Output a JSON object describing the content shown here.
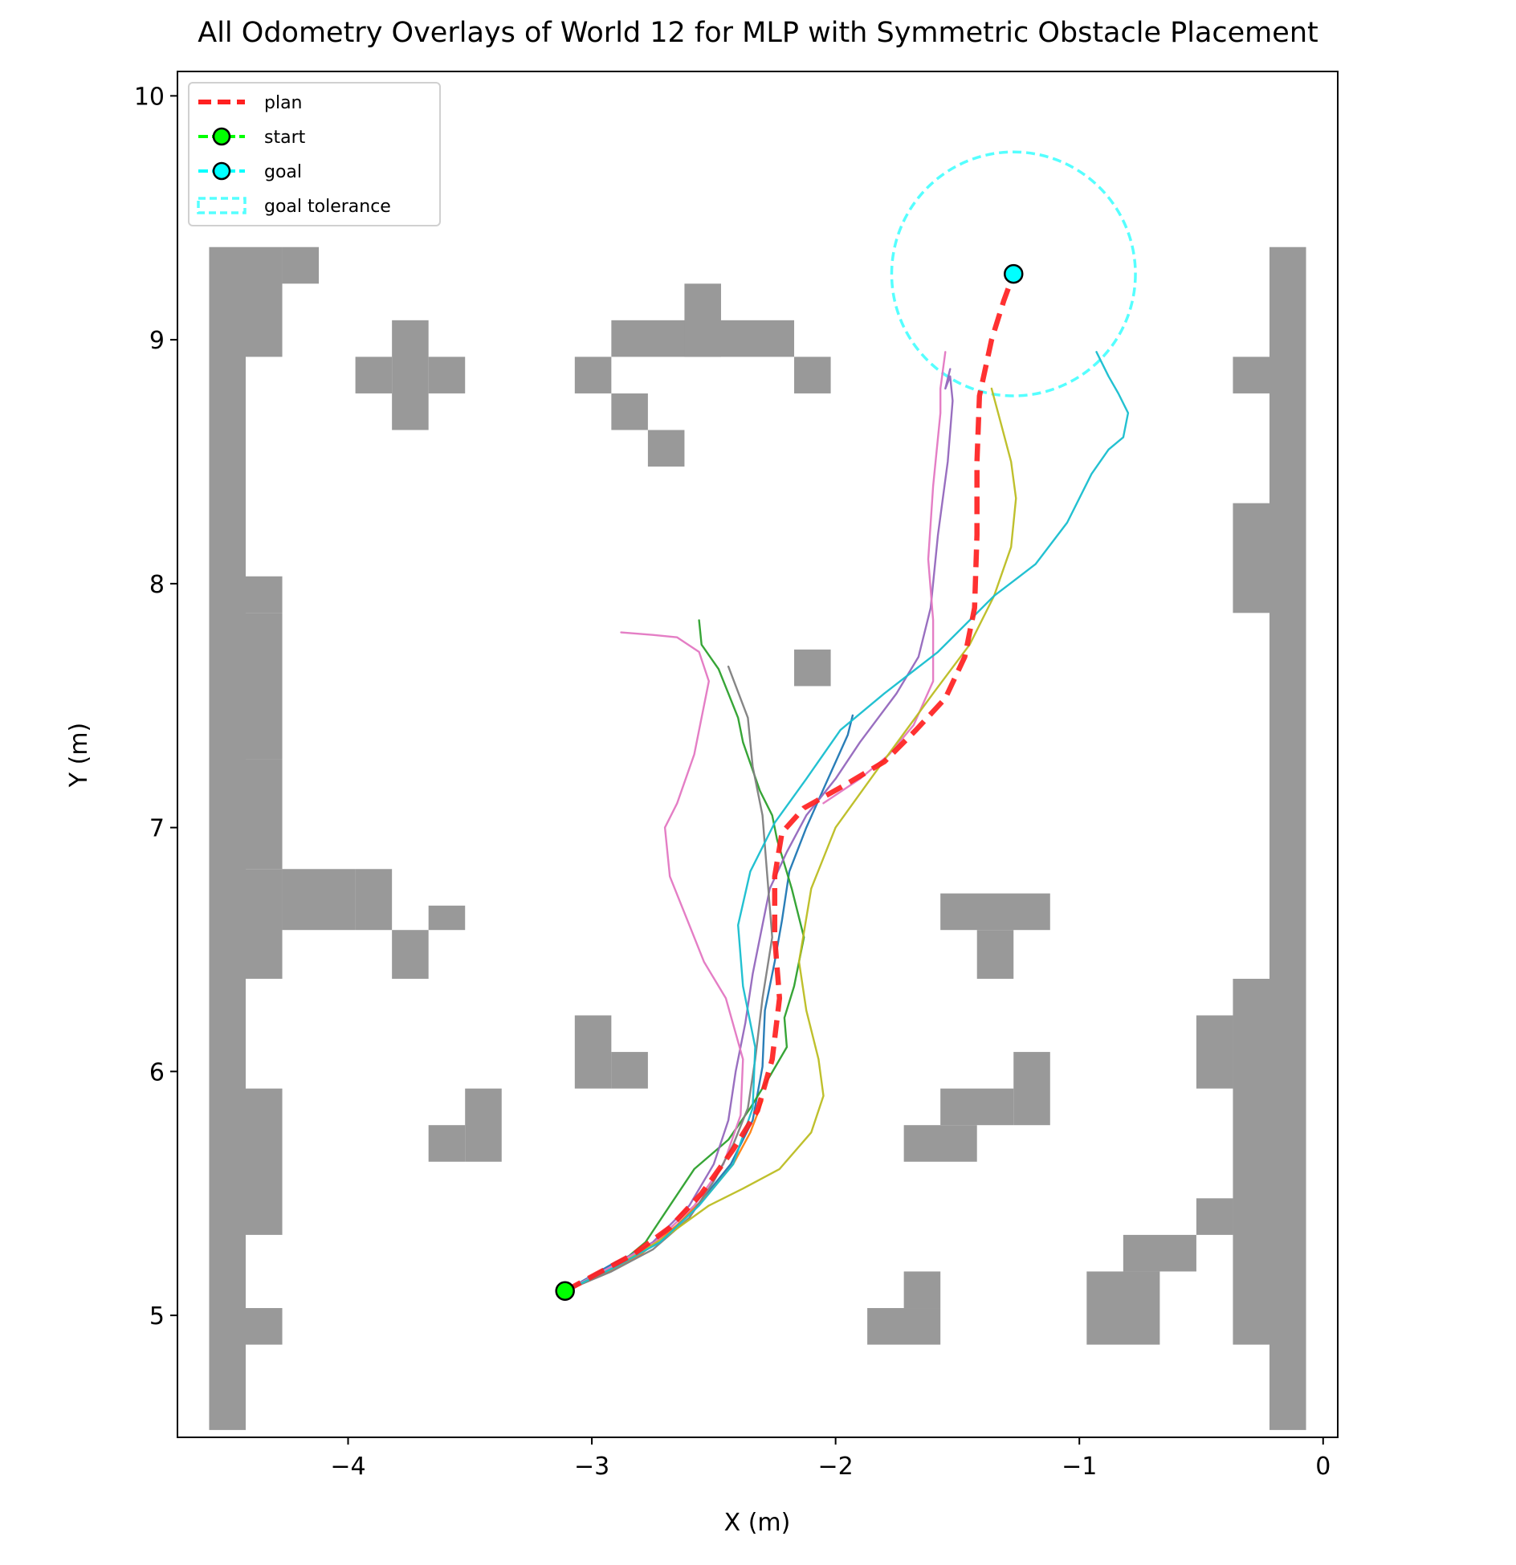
{
  "chart_data": {
    "type": "line",
    "title": "All Odometry Overlays of World 12 for MLP with Symmetric Obstacle Placement",
    "xlabel": "X (m)",
    "ylabel": "Y (m)",
    "xlim": [
      -4.7,
      0.06
    ],
    "ylim": [
      4.5,
      10.1
    ],
    "xticks": [
      -4,
      -3,
      -2,
      -1,
      0
    ],
    "xtick_labels": [
      "−4",
      "−3",
      "−2",
      "−1",
      "0"
    ],
    "yticks": [
      5,
      6,
      7,
      8,
      9,
      10
    ],
    "ytick_labels": [
      "5",
      "6",
      "7",
      "8",
      "9",
      "10"
    ],
    "grid": false,
    "legend": {
      "position": "top-left",
      "entries": [
        {
          "label": "plan",
          "color": "#ff2020",
          "style": "dashed-line"
        },
        {
          "label": "start",
          "color": "#00ff00",
          "style": "line-marker"
        },
        {
          "label": "goal",
          "color": "#00ffff",
          "style": "line-marker"
        },
        {
          "label": "goal tolerance",
          "color": "#55ffff",
          "style": "dashed-patch"
        }
      ]
    },
    "obstacle_color": "#999999",
    "obstacles": [
      [
        -4.57,
        4.53,
        0.15,
        4.85
      ],
      [
        -4.42,
        8.93,
        0.15,
        0.45
      ],
      [
        -4.42,
        7.88,
        0.15,
        0.15
      ],
      [
        -4.42,
        7.28,
        0.15,
        0.6
      ],
      [
        -4.42,
        6.83,
        0.15,
        0.45
      ],
      [
        -4.42,
        6.38,
        0.15,
        0.45
      ],
      [
        -4.42,
        5.33,
        0.15,
        0.6
      ],
      [
        -4.42,
        4.88,
        0.15,
        0.15
      ],
      [
        -4.27,
        9.23,
        0.15,
        0.15
      ],
      [
        -4.27,
        6.58,
        0.3,
        0.25
      ],
      [
        -3.97,
        6.58,
        0.15,
        0.25
      ],
      [
        -3.97,
        8.78,
        0.15,
        0.15
      ],
      [
        -3.82,
        8.63,
        0.15,
        0.45
      ],
      [
        -3.67,
        8.78,
        0.15,
        0.15
      ],
      [
        -3.82,
        6.38,
        0.15,
        0.2
      ],
      [
        -3.67,
        6.58,
        0.15,
        0.1
      ],
      [
        -3.67,
        5.63,
        0.15,
        0.15
      ],
      [
        -3.52,
        5.63,
        0.15,
        0.3
      ],
      [
        -3.07,
        5.93,
        0.15,
        0.3
      ],
      [
        -2.92,
        5.93,
        0.15,
        0.15
      ],
      [
        -3.07,
        8.78,
        0.15,
        0.15
      ],
      [
        -2.92,
        8.93,
        0.45,
        0.15
      ],
      [
        -2.62,
        8.93,
        0.15,
        0.3
      ],
      [
        -2.92,
        8.63,
        0.15,
        0.15
      ],
      [
        -2.77,
        8.48,
        0.15,
        0.15
      ],
      [
        -2.47,
        8.93,
        0.3,
        0.15
      ],
      [
        -2.17,
        8.78,
        0.15,
        0.15
      ],
      [
        -2.17,
        7.58,
        0.15,
        0.15
      ],
      [
        -1.57,
        6.58,
        0.45,
        0.15
      ],
      [
        -1.42,
        6.38,
        0.15,
        0.2
      ],
      [
        -1.72,
        5.63,
        0.3,
        0.15
      ],
      [
        -1.57,
        5.78,
        0.3,
        0.15
      ],
      [
        -1.27,
        5.78,
        0.15,
        0.3
      ],
      [
        -1.87,
        4.88,
        0.3,
        0.15
      ],
      [
        -1.72,
        5.03,
        0.15,
        0.15
      ],
      [
        -0.97,
        4.88,
        0.3,
        0.3
      ],
      [
        -0.82,
        5.18,
        0.3,
        0.15
      ],
      [
        -0.52,
        5.33,
        0.15,
        0.15
      ],
      [
        -0.52,
        5.93,
        0.15,
        0.3
      ],
      [
        -0.37,
        4.88,
        0.15,
        1.5
      ],
      [
        -0.37,
        6.68,
        0.0,
        0.0
      ],
      [
        -0.37,
        7.88,
        0.15,
        0.45
      ],
      [
        -0.37,
        8.78,
        0.15,
        0.15
      ],
      [
        -0.22,
        4.53,
        0.15,
        4.85
      ]
    ],
    "start": {
      "x": -3.11,
      "y": 5.1,
      "color": "#00ff00"
    },
    "goal": {
      "x": -1.27,
      "y": 9.27,
      "color": "#00ffff"
    },
    "goal_tolerance": {
      "radius": 0.5,
      "color": "#55ffff"
    },
    "plan": {
      "name": "plan",
      "color": "#ff2020",
      "x": [
        -3.11,
        -2.98,
        -2.83,
        -2.68,
        -2.55,
        -2.42,
        -2.32,
        -2.26,
        -2.23,
        -2.25,
        -2.25,
        -2.22,
        -2.13,
        -1.97,
        -1.8,
        -1.67,
        -1.55,
        -1.47,
        -1.43,
        -1.42,
        -1.42,
        -1.41,
        -1.36,
        -1.31,
        -1.27
      ],
      "y": [
        5.1,
        5.17,
        5.25,
        5.36,
        5.5,
        5.68,
        5.84,
        6.05,
        6.3,
        6.55,
        6.8,
        6.98,
        7.08,
        7.17,
        7.27,
        7.4,
        7.53,
        7.7,
        7.9,
        8.2,
        8.5,
        8.77,
        9.0,
        9.16,
        9.27
      ]
    },
    "series": [
      {
        "color": "#1f77b4",
        "x": [
          -3.11,
          -2.9,
          -2.72,
          -2.56,
          -2.43,
          -2.34,
          -2.3,
          -2.29,
          -2.25,
          -2.22,
          -2.19,
          -2.12,
          -2.04,
          -1.95,
          -1.93
        ],
        "y": [
          5.1,
          5.22,
          5.3,
          5.46,
          5.62,
          5.8,
          6.02,
          6.25,
          6.45,
          6.62,
          6.82,
          7.0,
          7.18,
          7.38,
          7.46
        ]
      },
      {
        "color": "#2ca02c",
        "x": [
          -3.11,
          -2.9,
          -2.78,
          -2.68,
          -2.58,
          -2.44,
          -2.35,
          -2.27,
          -2.2,
          -2.21,
          -2.17,
          -2.13,
          -2.18,
          -2.24,
          -2.26,
          -2.31,
          -2.38,
          -2.4,
          -2.44,
          -2.48,
          -2.55,
          -2.56
        ],
        "y": [
          5.1,
          5.2,
          5.3,
          5.45,
          5.6,
          5.72,
          5.85,
          5.98,
          6.1,
          6.22,
          6.35,
          6.55,
          6.75,
          6.95,
          7.05,
          7.15,
          7.35,
          7.45,
          7.55,
          7.65,
          7.75,
          7.85
        ]
      },
      {
        "color": "#ff7f0e",
        "x": [
          -3.11,
          -2.95,
          -2.8,
          -2.65,
          -2.52,
          -2.42,
          -2.35,
          -2.3
        ],
        "y": [
          5.1,
          5.17,
          5.25,
          5.37,
          5.5,
          5.62,
          5.75,
          5.88
        ]
      },
      {
        "color": "#9467bd",
        "x": [
          -3.11,
          -2.92,
          -2.75,
          -2.6,
          -2.5,
          -2.44,
          -2.41,
          -2.37,
          -2.34,
          -2.31,
          -2.27,
          -2.2,
          -2.12,
          -2.0,
          -1.9,
          -1.75,
          -1.66,
          -1.61,
          -1.58,
          -1.54,
          -1.52,
          -1.53,
          -1.55,
          -1.53
        ],
        "y": [
          5.1,
          5.2,
          5.3,
          5.45,
          5.62,
          5.8,
          6.0,
          6.2,
          6.4,
          6.55,
          6.75,
          6.9,
          7.05,
          7.2,
          7.35,
          7.55,
          7.7,
          7.9,
          8.2,
          8.5,
          8.75,
          8.85,
          8.8,
          8.88
        ]
      },
      {
        "color": "#e377c2",
        "x": [
          -3.11,
          -2.92,
          -2.74,
          -2.58,
          -2.46,
          -2.39,
          -2.38,
          -2.45,
          -2.54,
          -2.6,
          -2.68,
          -2.7,
          -2.65,
          -2.58,
          -2.55,
          -2.52,
          -2.56,
          -2.65,
          -2.75,
          -2.88
        ],
        "y": [
          5.1,
          5.2,
          5.3,
          5.45,
          5.62,
          5.82,
          6.05,
          6.3,
          6.45,
          6.6,
          6.8,
          7.0,
          7.1,
          7.3,
          7.45,
          7.6,
          7.72,
          7.78,
          7.79,
          7.8
        ]
      },
      {
        "color": "#e377c2",
        "x": [
          -2.05,
          -1.9,
          -1.78,
          -1.68,
          -1.6,
          -1.6,
          -1.62,
          -1.6,
          -1.57,
          -1.57,
          -1.55
        ],
        "y": [
          7.1,
          7.2,
          7.3,
          7.42,
          7.6,
          7.85,
          8.1,
          8.4,
          8.7,
          8.8,
          8.95
        ]
      },
      {
        "color": "#7f7f7f",
        "x": [
          -3.11,
          -2.92,
          -2.75,
          -2.6,
          -2.5,
          -2.42,
          -2.36,
          -2.33,
          -2.3,
          -2.26,
          -2.28,
          -2.3,
          -2.34,
          -2.36,
          -2.44
        ],
        "y": [
          5.1,
          5.18,
          5.27,
          5.4,
          5.55,
          5.7,
          5.85,
          6.05,
          6.3,
          6.55,
          6.8,
          7.05,
          7.25,
          7.45,
          7.66
        ]
      },
      {
        "color": "#bcbd22",
        "x": [
          -3.11,
          -2.9,
          -2.7,
          -2.52,
          -2.38,
          -2.23,
          -2.1,
          -2.05,
          -2.07,
          -2.12,
          -2.15,
          -2.1,
          -2.0,
          -1.82,
          -1.6,
          -1.45,
          -1.35,
          -1.28,
          -1.26,
          -1.28,
          -1.32,
          -1.36
        ],
        "y": [
          5.1,
          5.2,
          5.32,
          5.45,
          5.52,
          5.6,
          5.75,
          5.9,
          6.05,
          6.25,
          6.45,
          6.75,
          7.0,
          7.25,
          7.55,
          7.75,
          7.95,
          8.15,
          8.35,
          8.5,
          8.65,
          8.8
        ]
      },
      {
        "color": "#17becf",
        "x": [
          -3.11,
          -2.9,
          -2.72,
          -2.56,
          -2.42,
          -2.34,
          -2.33,
          -2.38,
          -2.4,
          -2.35,
          -2.25,
          -2.12,
          -1.98,
          -1.8,
          -1.58,
          -1.35,
          -1.18,
          -1.05,
          -0.95,
          -0.88,
          -0.82,
          -0.8,
          -0.84,
          -0.88,
          -0.93
        ],
        "y": [
          5.1,
          5.2,
          5.3,
          5.45,
          5.62,
          5.85,
          6.1,
          6.35,
          6.6,
          6.82,
          7.02,
          7.2,
          7.4,
          7.55,
          7.72,
          7.95,
          8.08,
          8.25,
          8.45,
          8.55,
          8.6,
          8.7,
          8.78,
          8.85,
          8.95
        ]
      }
    ]
  }
}
